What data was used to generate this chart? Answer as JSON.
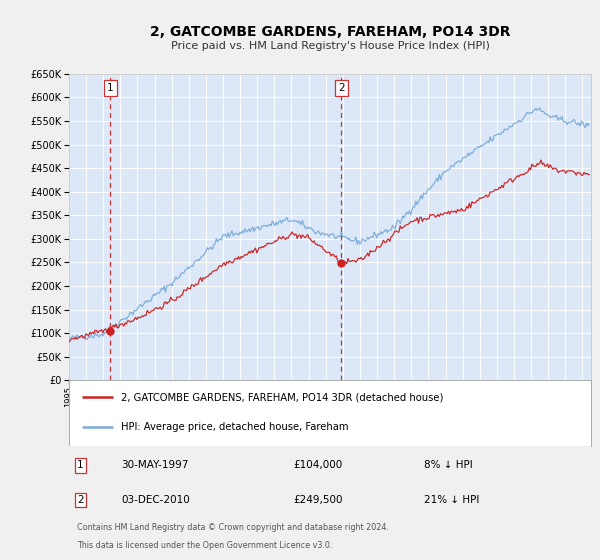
{
  "title": "2, GATCOMBE GARDENS, FAREHAM, PO14 3DR",
  "subtitle": "Price paid vs. HM Land Registry's House Price Index (HPI)",
  "xlim_start": 1995.0,
  "xlim_end": 2025.5,
  "ylim_bottom": 0,
  "ylim_top": 650000,
  "yticks": [
    0,
    50000,
    100000,
    150000,
    200000,
    250000,
    300000,
    350000,
    400000,
    450000,
    500000,
    550000,
    600000,
    650000
  ],
  "background_color": "#f0f0f0",
  "plot_bg_color": "#dce8f8",
  "grid_color": "#ffffff",
  "hpi_color": "#7aabda",
  "price_color": "#cc2222",
  "marker_color": "#cc2222",
  "dashed_line_color": "#cc3333",
  "sale1_year": 1997.42,
  "sale1_price": 104000,
  "sale1_label": "1",
  "sale1_date": "30-MAY-1997",
  "sale1_amount": "£104,000",
  "sale1_pct": "8% ↓ HPI",
  "sale2_year": 2010.92,
  "sale2_price": 249500,
  "sale2_label": "2",
  "sale2_date": "03-DEC-2010",
  "sale2_amount": "£249,500",
  "sale2_pct": "21% ↓ HPI",
  "legend_label1": "2, GATCOMBE GARDENS, FAREHAM, PO14 3DR (detached house)",
  "legend_label2": "HPI: Average price, detached house, Fareham",
  "footer1": "Contains HM Land Registry data © Crown copyright and database right 2024.",
  "footer2": "This data is licensed under the Open Government Licence v3.0."
}
